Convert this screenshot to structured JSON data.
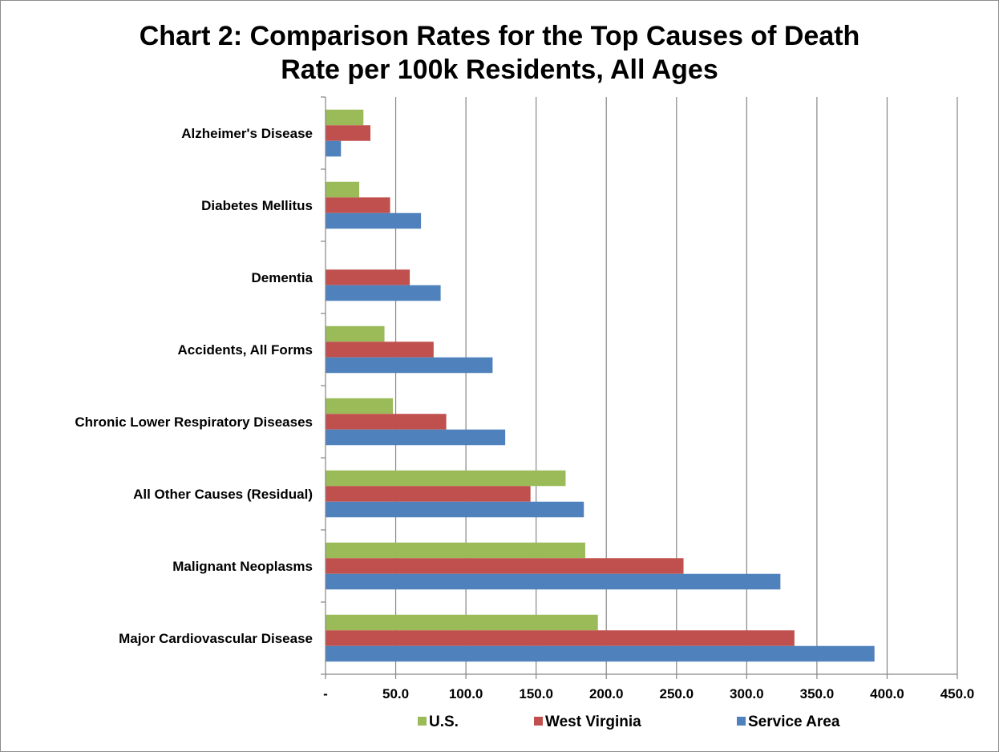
{
  "chart_data": {
    "type": "bar",
    "orientation": "horizontal",
    "title": [
      "Chart 2: Comparison Rates for the Top Causes of Death",
      "Rate per 100k Residents, All Ages"
    ],
    "xlim": [
      0,
      450
    ],
    "x_ticks": [
      0,
      50,
      100,
      150,
      200,
      250,
      300,
      350,
      400,
      450
    ],
    "x_tick_labels": [
      "-",
      "50.0",
      "100.0",
      "150.0",
      "200.0",
      "250.0",
      "300.0",
      "350.0",
      "400.0",
      "450.0"
    ],
    "grid": "vertical",
    "legend_position": "bottom",
    "categories": [
      "Alzheimer's Disease",
      "Diabetes Mellitus",
      "Dementia",
      "Accidents, All Forms",
      "Chronic Lower Respiratory Diseases",
      "All Other Causes (Residual)",
      "Malignant Neoplasms",
      "Major Cardiovascular Disease"
    ],
    "series": [
      {
        "name": "U.S.",
        "color": "#9bbb59",
        "values": [
          27,
          24,
          null,
          42,
          48,
          171,
          185,
          194
        ]
      },
      {
        "name": "West Virginia",
        "color": "#c0504d",
        "values": [
          32,
          46,
          60,
          77,
          86,
          146,
          255,
          334
        ]
      },
      {
        "name": "Service Area",
        "color": "#4f81bd",
        "values": [
          11,
          68,
          82,
          119,
          128,
          184,
          324,
          391
        ]
      }
    ]
  }
}
